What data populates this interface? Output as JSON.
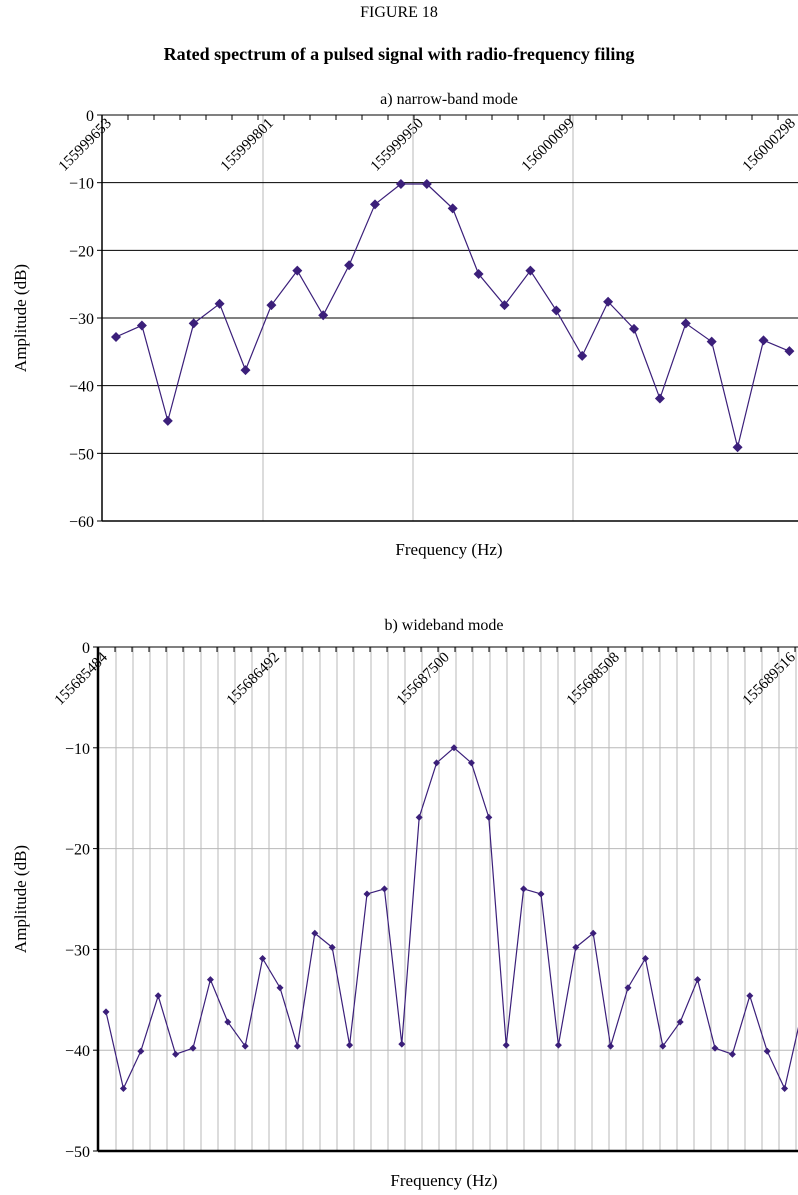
{
  "figure": {
    "label": "FIGURE 18",
    "title": "Rated spectrum of a pulsed signal with radio-frequency filing"
  },
  "colors": {
    "series": "#3b1f7a",
    "grid": "#b8b8b8",
    "axis": "#000000"
  },
  "chart_data": [
    {
      "type": "line",
      "title": "a) narrow-band mode",
      "xlabel": "Frequency (Hz)",
      "ylabel": "Amplitude (dB)",
      "ylim": [
        -60,
        0
      ],
      "yticks": [
        "0",
        "−10",
        "−20",
        "−30",
        "−40",
        "−50",
        "−60"
      ],
      "xtick_labels": [
        "155999653",
        "155999801",
        "155999950",
        "156000099",
        "156000298"
      ],
      "grid": true,
      "series": [
        {
          "values": [
            -32.8,
            -31.1,
            -45.2,
            -30.8,
            -27.9,
            -37.7,
            -28.1,
            -23.0,
            -29.6,
            -22.2,
            -13.2,
            -10.2,
            -10.2,
            -13.8,
            -23.5,
            -28.1,
            -23.0,
            -28.9,
            -35.6,
            -27.6,
            -31.6,
            -41.9,
            -30.8,
            -33.5,
            -49.1,
            -33.3,
            -34.9
          ]
        }
      ]
    },
    {
      "type": "line",
      "title": "b) wideband mode",
      "xlabel": "Frequency (Hz)",
      "ylabel": "Amplitude (dB)",
      "ylim": [
        -50,
        0
      ],
      "yticks": [
        "0",
        "−10",
        "−20",
        "−30",
        "−40",
        "−50"
      ],
      "xtick_labels": [
        "155685484",
        "155686492",
        "155687500",
        "155688508",
        "155689516"
      ],
      "grid": true,
      "series": [
        {
          "values": [
            -36.2,
            -43.8,
            -40.1,
            -34.6,
            -40.4,
            -39.8,
            -33.0,
            -37.2,
            -39.6,
            -30.9,
            -33.8,
            -39.6,
            -28.4,
            -29.8,
            -39.5,
            -24.5,
            -24.0,
            -39.4,
            -16.9,
            -11.5,
            -10.0,
            -11.5,
            -16.9,
            -39.5,
            -24.0,
            -24.5,
            -39.5,
            -29.8,
            -28.4,
            -39.6,
            -33.8,
            -30.9,
            -39.6,
            -37.2,
            -33.0,
            -39.8,
            -40.4,
            -34.6,
            -40.1,
            -43.8,
            -36.2
          ]
        }
      ]
    }
  ]
}
